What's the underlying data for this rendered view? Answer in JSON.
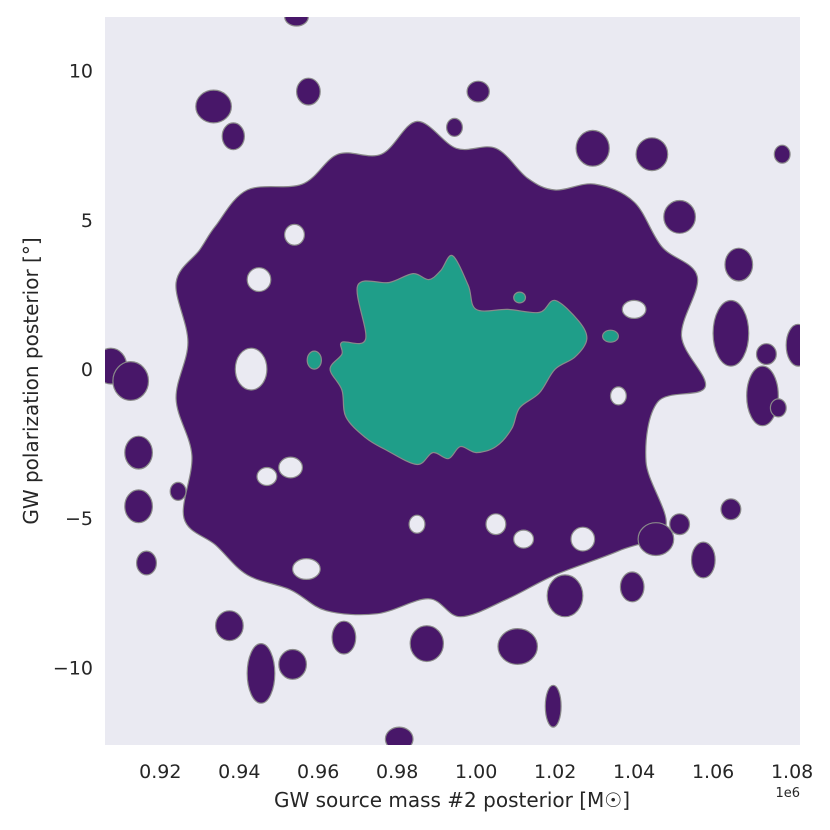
{
  "chart_data": {
    "type": "contour",
    "xlabel": "GW source mass #2 posterior [M☉]",
    "ylabel": "GW polarization posterior [°]",
    "x_offset_label": "1e6",
    "xlim": [
      0.906,
      1.082
    ],
    "ylim": [
      -12.6,
      11.8
    ],
    "x_ticks": [
      0.92,
      0.94,
      0.96,
      0.98,
      1.0,
      1.02,
      1.04,
      1.06,
      1.08
    ],
    "x_tick_labels": [
      "0.92",
      "0.94",
      "0.96",
      "0.98",
      "1.00",
      "1.02",
      "1.04",
      "1.06",
      "1.08"
    ],
    "y_ticks": [
      10,
      5,
      0,
      -5,
      -10
    ],
    "y_tick_labels": [
      "10",
      "5",
      "0",
      "−5",
      "−10"
    ],
    "grid": false,
    "background_color": "#eaeaf2",
    "levels": [
      {
        "name": "outer",
        "color": "#481769",
        "main_region": [
          [
            0.934,
            4.8
          ],
          [
            0.942,
            6.0
          ],
          [
            0.956,
            6.2
          ],
          [
            0.965,
            7.2
          ],
          [
            0.976,
            7.2
          ],
          [
            0.985,
            8.3
          ],
          [
            0.995,
            7.4
          ],
          [
            1.005,
            7.4
          ],
          [
            1.013,
            6.4
          ],
          [
            1.02,
            6.0
          ],
          [
            1.03,
            6.2
          ],
          [
            1.04,
            5.6
          ],
          [
            1.047,
            4.1
          ],
          [
            1.056,
            3.1
          ],
          [
            1.052,
            1.1
          ],
          [
            1.058,
            -0.6
          ],
          [
            1.046,
            -1.1
          ],
          [
            1.043,
            -3.1
          ],
          [
            1.048,
            -5.3
          ],
          [
            1.036,
            -6.1
          ],
          [
            1.02,
            -6.9
          ],
          [
            1.008,
            -7.7
          ],
          [
            0.996,
            -8.3
          ],
          [
            0.988,
            -7.7
          ],
          [
            0.975,
            -8.2
          ],
          [
            0.962,
            -8.1
          ],
          [
            0.953,
            -7.4
          ],
          [
            0.942,
            -6.9
          ],
          [
            0.934,
            -5.9
          ],
          [
            0.926,
            -5.0
          ],
          [
            0.928,
            -2.9
          ],
          [
            0.924,
            -1.0
          ],
          [
            0.927,
            0.9
          ],
          [
            0.924,
            2.9
          ],
          [
            0.93,
            4.0
          ]
        ],
        "islands": [
          [
            0.9335,
            8.8,
            0.0045,
            0.55
          ],
          [
            0.9545,
            11.8,
            0.003,
            0.3
          ],
          [
            0.9575,
            9.3,
            0.003,
            0.45
          ],
          [
            0.9385,
            7.8,
            0.0028,
            0.45
          ],
          [
            1.0005,
            9.3,
            0.0028,
            0.35
          ],
          [
            0.9945,
            8.1,
            0.002,
            0.3
          ],
          [
            1.0295,
            7.4,
            0.0042,
            0.6
          ],
          [
            1.0445,
            7.2,
            0.004,
            0.55
          ],
          [
            1.0515,
            5.1,
            0.004,
            0.55
          ],
          [
            1.0665,
            3.5,
            0.0035,
            0.55
          ],
          [
            1.0645,
            1.2,
            0.0045,
            1.1
          ],
          [
            1.0775,
            7.2,
            0.002,
            0.3
          ],
          [
            1.0815,
            0.8,
            0.003,
            0.7
          ],
          [
            1.0735,
            0.5,
            0.0025,
            0.35
          ],
          [
            1.0725,
            -0.9,
            0.004,
            1.0
          ],
          [
            1.0765,
            -1.3,
            0.002,
            0.3
          ],
          [
            1.0645,
            -4.7,
            0.0025,
            0.35
          ],
          [
            1.0515,
            -5.2,
            0.0025,
            0.35
          ],
          [
            1.0455,
            -5.7,
            0.0045,
            0.55
          ],
          [
            1.0575,
            -6.4,
            0.003,
            0.6
          ],
          [
            1.0395,
            -7.3,
            0.003,
            0.5
          ],
          [
            1.0225,
            -7.6,
            0.0045,
            0.7
          ],
          [
            1.0105,
            -9.3,
            0.005,
            0.6
          ],
          [
            1.0195,
            -11.3,
            0.002,
            0.7
          ],
          [
            0.9805,
            -12.4,
            0.0035,
            0.4
          ],
          [
            0.9875,
            -9.2,
            0.0042,
            0.6
          ],
          [
            0.9665,
            -9.0,
            0.003,
            0.55
          ],
          [
            0.9535,
            -9.9,
            0.0035,
            0.5
          ],
          [
            0.9455,
            -10.2,
            0.0035,
            1.0
          ],
          [
            0.9375,
            -8.6,
            0.0035,
            0.5
          ],
          [
            0.9165,
            -6.5,
            0.0025,
            0.4
          ],
          [
            0.9145,
            -4.6,
            0.0035,
            0.55
          ],
          [
            0.9245,
            -4.1,
            0.002,
            0.3
          ],
          [
            0.9145,
            -2.8,
            0.0035,
            0.55
          ],
          [
            0.9075,
            0.1,
            0.004,
            0.6
          ],
          [
            0.9125,
            -0.4,
            0.0045,
            0.65
          ]
        ],
        "holes": [
          [
            0.943,
            0.0,
            0.004,
            0.7
          ],
          [
            0.945,
            3.0,
            0.003,
            0.4
          ],
          [
            0.954,
            4.5,
            0.0025,
            0.35
          ],
          [
            0.953,
            -3.3,
            0.003,
            0.35
          ],
          [
            0.947,
            -3.6,
            0.0025,
            0.3
          ],
          [
            0.957,
            -6.7,
            0.0035,
            0.35
          ],
          [
            0.985,
            -5.2,
            0.002,
            0.3
          ],
          [
            1.005,
            -5.2,
            0.0025,
            0.35
          ],
          [
            1.027,
            -5.7,
            0.003,
            0.4
          ],
          [
            1.036,
            -0.9,
            0.002,
            0.3
          ],
          [
            1.04,
            2.0,
            0.003,
            0.3
          ],
          [
            1.012,
            -5.7,
            0.0025,
            0.3
          ]
        ]
      },
      {
        "name": "inner",
        "color": "#1f9e89",
        "main_region": [
          [
            0.966,
            0.9
          ],
          [
            0.972,
            1.0
          ],
          [
            0.97,
            2.8
          ],
          [
            0.978,
            2.9
          ],
          [
            0.984,
            3.2
          ],
          [
            0.988,
            3.0
          ],
          [
            0.991,
            3.3
          ],
          [
            0.994,
            3.8
          ],
          [
            0.998,
            2.8
          ],
          [
            1.0,
            2.0
          ],
          [
            1.008,
            2.0
          ],
          [
            1.016,
            1.9
          ],
          [
            1.02,
            2.3
          ],
          [
            1.026,
            1.6
          ],
          [
            1.028,
            1.0
          ],
          [
            1.025,
            0.4
          ],
          [
            1.02,
            0.0
          ],
          [
            1.016,
            -0.8
          ],
          [
            1.011,
            -1.3
          ],
          [
            1.009,
            -2.0
          ],
          [
            1.005,
            -2.6
          ],
          [
            1.0,
            -2.8
          ],
          [
            0.996,
            -2.6
          ],
          [
            0.993,
            -3.0
          ],
          [
            0.989,
            -2.8
          ],
          [
            0.985,
            -3.2
          ],
          [
            0.977,
            -2.7
          ],
          [
            0.972,
            -2.3
          ],
          [
            0.967,
            -1.6
          ],
          [
            0.966,
            -0.7
          ],
          [
            0.963,
            0.0
          ],
          [
            0.966,
            0.5
          ]
        ],
        "islands": [
          [
            0.959,
            0.3,
            0.0018,
            0.3
          ],
          [
            1.011,
            2.4,
            0.0015,
            0.18
          ],
          [
            1.034,
            1.1,
            0.002,
            0.2
          ]
        ]
      }
    ]
  }
}
